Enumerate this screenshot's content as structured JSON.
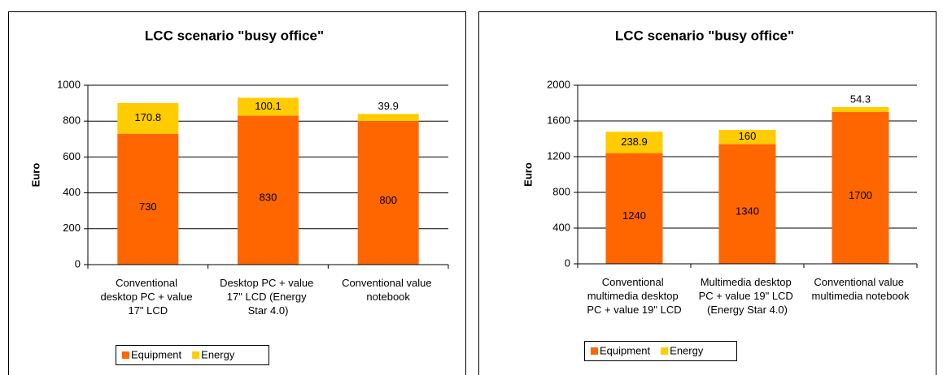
{
  "chart_data": [
    {
      "type": "bar",
      "stacked": true,
      "title": "LCC scenario \"busy office\"",
      "ylabel": "Euro",
      "categories": [
        "Conventional desktop PC + value 17\" LCD",
        "Desktop PC + value 17\" LCD (Energy Star 4.0)",
        "Conventional value notebook"
      ],
      "series": [
        {
          "name": "Equipment",
          "color": "#ff6600",
          "values": [
            730,
            830,
            800
          ]
        },
        {
          "name": "Energy",
          "color": "#ffcc00",
          "values": [
            170.8,
            100.1,
            39.9
          ]
        }
      ],
      "ylim": [
        0,
        1000
      ],
      "yticks": [
        0,
        200,
        400,
        600,
        800,
        1000
      ],
      "grid": true,
      "legend": "bottom"
    },
    {
      "type": "bar",
      "stacked": true,
      "title": "LCC scenario \"busy office\"",
      "ylabel": "Euro",
      "categories": [
        "Conventional multimedia desktop PC + value 19\" LCD",
        "Multimedia desktop PC + value 19\" LCD (Energy Star 4.0)",
        "Conventional value multimedia notebook"
      ],
      "series": [
        {
          "name": "Equipment",
          "color": "#ff6600",
          "values": [
            1240,
            1340,
            1700
          ]
        },
        {
          "name": "Energy",
          "color": "#ffcc00",
          "values": [
            238.9,
            160,
            54.3
          ]
        }
      ],
      "ylim": [
        0,
        2000
      ],
      "yticks": [
        0,
        400,
        800,
        1200,
        1600,
        2000
      ],
      "grid": true,
      "legend": "bottom"
    }
  ]
}
